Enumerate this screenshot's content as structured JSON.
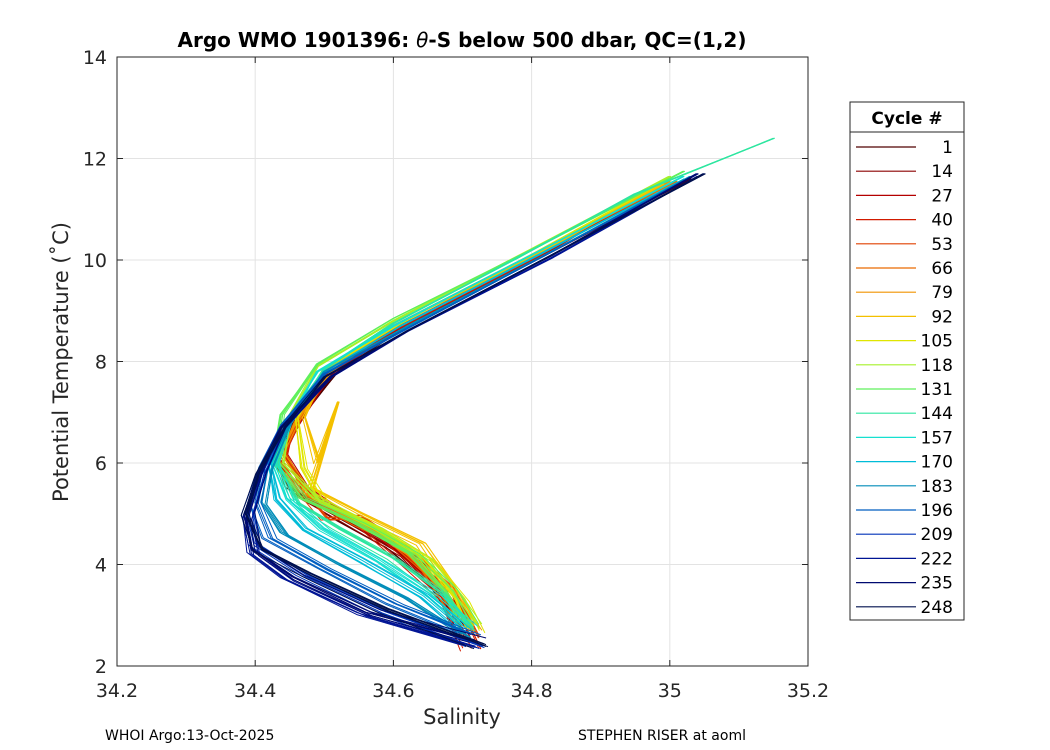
{
  "chart_data": {
    "type": "line",
    "title_main": "Argo WMO 1901396: ",
    "title_theta": "θ",
    "title_rest": "-S below 500 dbar,  QC=(1,2)",
    "xlabel": "Salinity",
    "ylabel": "Potential Temperature (˚C)",
    "xlim": [
      34.2,
      35.2
    ],
    "ylim": [
      2,
      14
    ],
    "xticks": [
      "34.2",
      "34.4",
      "34.6",
      "34.8",
      "35",
      "35.2"
    ],
    "yticks": [
      "2",
      "4",
      "6",
      "8",
      "10",
      "12",
      "14"
    ],
    "grid": true,
    "legend_title": "Cycle #",
    "legend_position": "right",
    "legend": [
      {
        "label": "1",
        "color": "#500000"
      },
      {
        "label": "14",
        "color": "#8c0000"
      },
      {
        "label": "27",
        "color": "#b40000"
      },
      {
        "label": "40",
        "color": "#d11a00"
      },
      {
        "label": "53",
        "color": "#e04000"
      },
      {
        "label": "66",
        "color": "#ea6a00"
      },
      {
        "label": "79",
        "color": "#f09400"
      },
      {
        "label": "92",
        "color": "#f4c000"
      },
      {
        "label": "105",
        "color": "#e0e600"
      },
      {
        "label": "118",
        "color": "#a6f02a"
      },
      {
        "label": "131",
        "color": "#5ff05c"
      },
      {
        "label": "144",
        "color": "#2ee6a0"
      },
      {
        "label": "157",
        "color": "#16e0d0"
      },
      {
        "label": "170",
        "color": "#00bcd8"
      },
      {
        "label": "183",
        "color": "#008cb8"
      },
      {
        "label": "196",
        "color": "#005ec0"
      },
      {
        "label": "209",
        "color": "#0032b8"
      },
      {
        "label": "222",
        "color": "#001494"
      },
      {
        "label": "235",
        "color": "#000a70"
      },
      {
        "label": "248",
        "color": "#00104e"
      }
    ],
    "series_profiles": [
      {
        "cycle": "1",
        "color": "#500000",
        "points": [
          [
            35.03,
            11.6
          ],
          [
            34.82,
            10.1
          ],
          [
            34.62,
            8.7
          ],
          [
            34.52,
            7.8
          ],
          [
            34.46,
            6.8
          ],
          [
            34.43,
            6.2
          ],
          [
            34.45,
            5.5
          ],
          [
            34.52,
            4.9
          ],
          [
            34.6,
            4.3
          ],
          [
            34.66,
            3.6
          ],
          [
            34.71,
            2.8
          ]
        ]
      },
      {
        "cycle": "14",
        "color": "#8c0000",
        "points": [
          [
            34.98,
            11.4
          ],
          [
            34.8,
            10.0
          ],
          [
            34.6,
            8.6
          ],
          [
            34.5,
            7.7
          ],
          [
            34.45,
            6.7
          ],
          [
            34.43,
            6.1
          ],
          [
            34.46,
            5.4
          ],
          [
            34.53,
            4.9
          ],
          [
            34.62,
            4.2
          ],
          [
            34.67,
            3.5
          ],
          [
            34.71,
            2.6
          ]
        ]
      },
      {
        "cycle": "27",
        "color": "#b40000",
        "points": [
          [
            34.99,
            11.5
          ],
          [
            34.81,
            10.05
          ],
          [
            34.61,
            8.65
          ],
          [
            34.51,
            7.75
          ],
          [
            34.46,
            6.75
          ],
          [
            34.44,
            6.2
          ],
          [
            34.47,
            5.5
          ],
          [
            34.53,
            4.95
          ],
          [
            34.61,
            4.3
          ],
          [
            34.67,
            3.55
          ],
          [
            34.7,
            2.5
          ]
        ]
      },
      {
        "cycle": "40",
        "color": "#d11a00",
        "points": [
          [
            35.0,
            11.5
          ],
          [
            34.8,
            10.0
          ],
          [
            34.6,
            8.6
          ],
          [
            34.5,
            7.7
          ],
          [
            34.45,
            6.7
          ],
          [
            34.44,
            6.1
          ],
          [
            34.48,
            5.3
          ],
          [
            34.56,
            4.7
          ],
          [
            34.62,
            4.0
          ],
          [
            34.68,
            3.3
          ],
          [
            34.71,
            2.3
          ]
        ]
      },
      {
        "cycle": "53",
        "color": "#e04000",
        "points": [
          [
            35.0,
            11.6
          ],
          [
            34.8,
            10.05
          ],
          [
            34.61,
            8.7
          ],
          [
            34.5,
            7.8
          ],
          [
            34.46,
            6.8
          ],
          [
            34.44,
            6.2
          ],
          [
            34.47,
            5.4
          ],
          [
            34.5,
            4.9
          ],
          [
            34.55,
            4.95
          ],
          [
            34.62,
            4.3
          ],
          [
            34.68,
            3.5
          ],
          [
            34.71,
            2.6
          ]
        ]
      },
      {
        "cycle": "66",
        "color": "#ea6a00",
        "points": [
          [
            35.01,
            11.55
          ],
          [
            34.8,
            10.1
          ],
          [
            34.6,
            8.7
          ],
          [
            34.5,
            7.8
          ],
          [
            34.45,
            6.8
          ],
          [
            34.43,
            6.1
          ],
          [
            34.47,
            5.4
          ],
          [
            34.55,
            4.8
          ],
          [
            34.6,
            4.5
          ],
          [
            34.65,
            3.9
          ],
          [
            34.7,
            2.9
          ]
        ]
      },
      {
        "cycle": "79",
        "color": "#f09400",
        "points": [
          [
            35.0,
            11.55
          ],
          [
            34.8,
            10.05
          ],
          [
            34.6,
            8.7
          ],
          [
            34.51,
            7.8
          ],
          [
            34.46,
            6.8
          ],
          [
            34.44,
            6.2
          ],
          [
            34.48,
            5.4
          ],
          [
            34.56,
            4.8
          ],
          [
            34.63,
            4.2
          ],
          [
            34.68,
            3.5
          ],
          [
            34.72,
            2.7
          ]
        ]
      },
      {
        "cycle": "92",
        "color": "#f4c000",
        "points": [
          [
            34.99,
            11.5
          ],
          [
            34.8,
            10.05
          ],
          [
            34.6,
            8.7
          ],
          [
            34.5,
            7.8
          ],
          [
            34.47,
            6.9
          ],
          [
            34.49,
            6.0
          ],
          [
            34.52,
            7.2
          ],
          [
            34.48,
            5.5
          ],
          [
            34.55,
            5.0
          ],
          [
            34.64,
            4.4
          ],
          [
            34.68,
            3.6
          ],
          [
            34.71,
            2.8
          ]
        ]
      },
      {
        "cycle": "105",
        "color": "#e0e600",
        "points": [
          [
            35.0,
            11.6
          ],
          [
            34.8,
            10.1
          ],
          [
            34.61,
            8.75
          ],
          [
            34.5,
            7.85
          ],
          [
            34.46,
            6.9
          ],
          [
            34.47,
            5.9
          ],
          [
            34.5,
            5.2
          ],
          [
            34.58,
            4.7
          ],
          [
            34.65,
            4.1
          ],
          [
            34.7,
            3.3
          ],
          [
            34.72,
            2.7
          ]
        ]
      },
      {
        "cycle": "118",
        "color": "#a6f02a",
        "points": [
          [
            35.0,
            11.65
          ],
          [
            34.79,
            10.15
          ],
          [
            34.6,
            8.8
          ],
          [
            34.49,
            7.9
          ],
          [
            34.45,
            6.9
          ],
          [
            34.44,
            6.0
          ],
          [
            34.49,
            5.3
          ],
          [
            34.58,
            4.7
          ],
          [
            34.65,
            4.1
          ],
          [
            34.69,
            3.4
          ],
          [
            34.72,
            2.8
          ]
        ]
      },
      {
        "cycle": "131",
        "color": "#5ff05c",
        "points": [
          [
            35.02,
            11.75
          ],
          [
            34.8,
            10.2
          ],
          [
            34.6,
            8.85
          ],
          [
            34.49,
            7.95
          ],
          [
            34.44,
            6.95
          ],
          [
            34.43,
            6.0
          ],
          [
            34.47,
            5.3
          ],
          [
            34.55,
            4.8
          ],
          [
            34.63,
            4.2
          ],
          [
            34.68,
            3.5
          ],
          [
            34.71,
            2.8
          ]
        ]
      },
      {
        "cycle": "144",
        "color": "#2ee6a0",
        "points": [
          [
            35.15,
            12.4
          ],
          [
            34.95,
            11.3
          ],
          [
            34.78,
            10.05
          ],
          [
            34.6,
            8.75
          ],
          [
            34.5,
            7.85
          ],
          [
            34.45,
            6.85
          ],
          [
            34.43,
            6.0
          ],
          [
            34.46,
            5.2
          ],
          [
            34.52,
            4.7
          ],
          [
            34.6,
            4.1
          ],
          [
            34.67,
            3.4
          ],
          [
            34.71,
            2.7
          ]
        ]
      },
      {
        "cycle": "157",
        "color": "#16e0d0",
        "points": [
          [
            35.02,
            11.65
          ],
          [
            34.8,
            10.1
          ],
          [
            34.6,
            8.7
          ],
          [
            34.49,
            7.8
          ],
          [
            34.45,
            6.85
          ],
          [
            34.43,
            6.0
          ],
          [
            34.45,
            5.3
          ],
          [
            34.5,
            4.7
          ],
          [
            34.58,
            4.1
          ],
          [
            34.66,
            3.4
          ],
          [
            34.71,
            2.8
          ]
        ]
      },
      {
        "cycle": "170",
        "color": "#00bcd8",
        "points": [
          [
            35.02,
            11.6
          ],
          [
            34.81,
            10.1
          ],
          [
            34.61,
            8.7
          ],
          [
            34.5,
            7.8
          ],
          [
            34.45,
            6.8
          ],
          [
            34.42,
            6.0
          ],
          [
            34.43,
            5.3
          ],
          [
            34.47,
            4.7
          ],
          [
            34.55,
            4.1
          ],
          [
            34.64,
            3.4
          ],
          [
            34.7,
            2.7
          ]
        ]
      },
      {
        "cycle": "183",
        "color": "#008cb8",
        "points": [
          [
            35.03,
            11.65
          ],
          [
            34.82,
            10.1
          ],
          [
            34.62,
            8.7
          ],
          [
            34.5,
            7.8
          ],
          [
            34.45,
            6.8
          ],
          [
            34.42,
            5.9
          ],
          [
            34.41,
            5.2
          ],
          [
            34.44,
            4.6
          ],
          [
            34.52,
            4.0
          ],
          [
            34.62,
            3.3
          ],
          [
            34.7,
            2.6
          ]
        ]
      },
      {
        "cycle": "196",
        "color": "#005ec0",
        "points": [
          [
            35.04,
            11.7
          ],
          [
            34.82,
            10.1
          ],
          [
            34.62,
            8.65
          ],
          [
            34.5,
            7.75
          ],
          [
            34.44,
            6.75
          ],
          [
            34.41,
            5.9
          ],
          [
            34.4,
            5.2
          ],
          [
            34.42,
            4.5
          ],
          [
            34.5,
            3.9
          ],
          [
            34.6,
            3.2
          ],
          [
            34.71,
            2.6
          ]
        ]
      },
      {
        "cycle": "209",
        "color": "#0032b8",
        "points": [
          [
            35.05,
            11.7
          ],
          [
            34.83,
            10.1
          ],
          [
            34.62,
            8.6
          ],
          [
            34.51,
            7.7
          ],
          [
            34.44,
            6.7
          ],
          [
            34.41,
            5.8
          ],
          [
            34.39,
            5.0
          ],
          [
            34.4,
            4.4
          ],
          [
            34.47,
            3.8
          ],
          [
            34.58,
            3.1
          ],
          [
            34.72,
            2.4
          ]
        ]
      },
      {
        "cycle": "222",
        "color": "#001494",
        "points": [
          [
            35.04,
            11.65
          ],
          [
            34.83,
            10.05
          ],
          [
            34.62,
            8.6
          ],
          [
            34.51,
            7.7
          ],
          [
            34.44,
            6.7
          ],
          [
            34.41,
            5.8
          ],
          [
            34.39,
            4.9
          ],
          [
            34.4,
            4.2
          ],
          [
            34.45,
            3.7
          ],
          [
            34.56,
            3.0
          ],
          [
            34.71,
            2.4
          ]
        ]
      },
      {
        "cycle": "235",
        "color": "#000a70",
        "points": [
          [
            35.04,
            11.7
          ],
          [
            34.83,
            10.1
          ],
          [
            34.62,
            8.6
          ],
          [
            34.51,
            7.7
          ],
          [
            34.44,
            6.7
          ],
          [
            34.41,
            5.8
          ],
          [
            34.39,
            5.0
          ],
          [
            34.4,
            4.3
          ],
          [
            34.46,
            3.75
          ],
          [
            34.57,
            3.05
          ],
          [
            34.72,
            2.5
          ]
        ]
      },
      {
        "cycle": "248",
        "color": "#00104e",
        "points": [
          [
            35.05,
            11.7
          ],
          [
            34.83,
            10.1
          ],
          [
            34.62,
            8.6
          ],
          [
            34.5,
            7.7
          ],
          [
            34.44,
            6.7
          ],
          [
            34.4,
            5.8
          ],
          [
            34.38,
            5.0
          ],
          [
            34.4,
            4.3
          ],
          [
            34.47,
            3.8
          ],
          [
            34.58,
            3.1
          ],
          [
            34.72,
            2.4
          ]
        ]
      }
    ]
  },
  "footer": {
    "left": "WHOI Argo:13-Oct-2025",
    "right": "STEPHEN RISER at aoml"
  }
}
